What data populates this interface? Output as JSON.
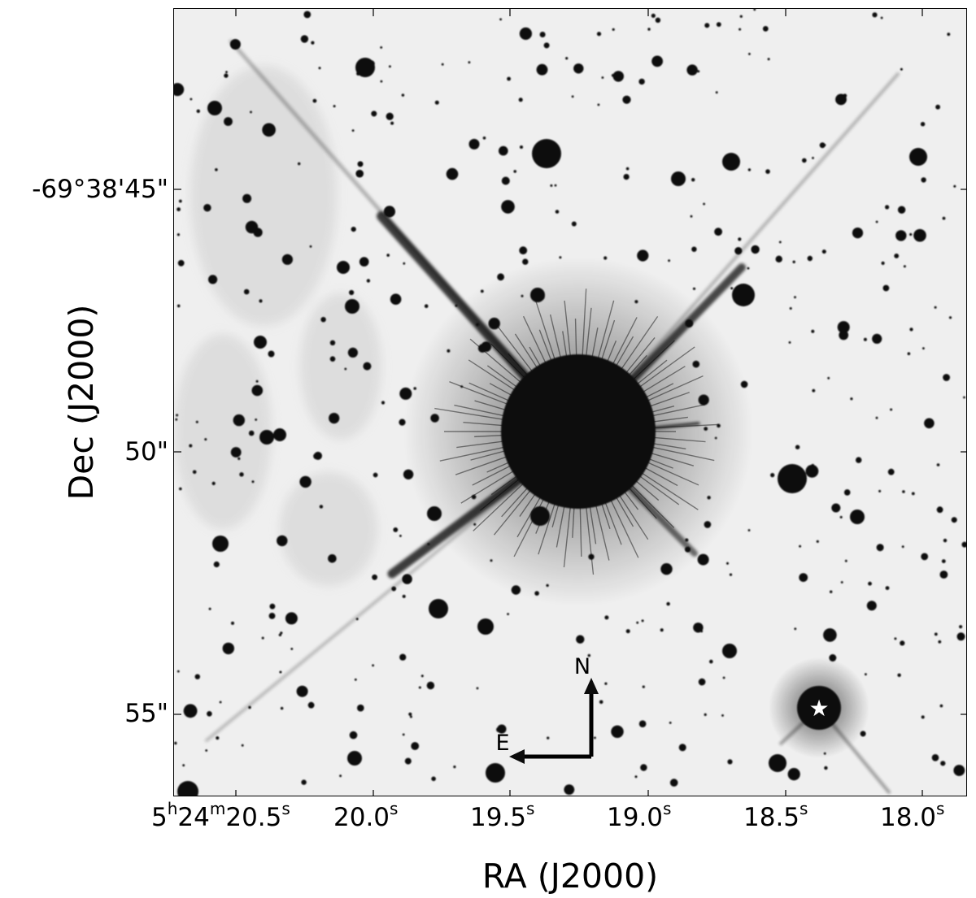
{
  "figure": {
    "xlabel": "RA (J2000)",
    "ylabel": "Dec (J2000)",
    "ra_ticks": [
      {
        "h": "5",
        "m": "24",
        "s": "20.5",
        "sym": "s"
      },
      {
        "text": "20.0",
        "sym": "s"
      },
      {
        "text": "19.5",
        "sym": "s"
      },
      {
        "text": "19.0",
        "sym": "s"
      },
      {
        "text": "18.5",
        "sym": "s"
      },
      {
        "text": "18.0",
        "sym": "s"
      }
    ],
    "dec_ticks": [
      "-69°38'45\"",
      "50\"",
      "55\""
    ],
    "compass": {
      "north": "N",
      "east": "E"
    },
    "marker": "★"
  },
  "colors": {
    "sky": "#efefef",
    "star": "#0b0b0b",
    "nebula": "#dcdcdc",
    "marker": "#ffffff"
  }
}
